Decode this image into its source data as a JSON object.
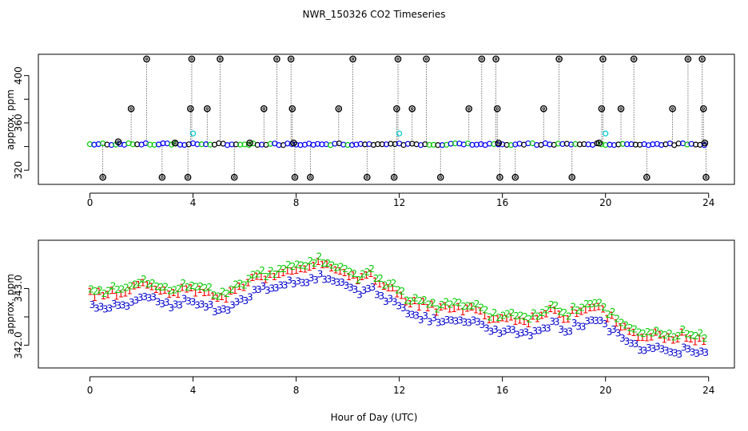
{
  "title": "NWR_150326  CO2 Timeseries",
  "xlabel": "Hour of Day (UTC)",
  "colors": {
    "flask_ring": "#000000",
    "series1": "#ff0000",
    "series2": "#00cc00",
    "series3": "#0000cc",
    "highlight": "#00cccc",
    "insitu": "#0000ff"
  },
  "chart_data": [
    {
      "type": "scatter",
      "name": "top-panel",
      "ylabel": "approx. ppm",
      "xlim": [
        -2,
        25
      ],
      "ylim": [
        308,
        418
      ],
      "xticks": [
        0,
        4,
        8,
        12,
        16,
        20,
        24
      ],
      "yticks": [
        320,
        340,
        360,
        380,
        400
      ],
      "ytick_labels": [
        "320",
        "",
        "360",
        "",
        "400"
      ],
      "baseline": 342,
      "insitu_minutes_step": 10,
      "outliers": [
        {
          "x": 0.5,
          "y": 314
        },
        {
          "x": 1.1,
          "y": 344
        },
        {
          "x": 1.6,
          "y": 372
        },
        {
          "x": 2.2,
          "y": 414
        },
        {
          "x": 2.8,
          "y": 314
        },
        {
          "x": 3.3,
          "y": 343
        },
        {
          "x": 3.8,
          "y": 314
        },
        {
          "x": 3.9,
          "y": 372
        },
        {
          "x": 3.95,
          "y": 414
        },
        {
          "x": 4.55,
          "y": 372
        },
        {
          "x": 5.05,
          "y": 414
        },
        {
          "x": 5.6,
          "y": 314
        },
        {
          "x": 6.2,
          "y": 343
        },
        {
          "x": 6.75,
          "y": 372
        },
        {
          "x": 7.25,
          "y": 414
        },
        {
          "x": 7.8,
          "y": 414
        },
        {
          "x": 7.85,
          "y": 372
        },
        {
          "x": 7.9,
          "y": 343
        },
        {
          "x": 7.95,
          "y": 314
        },
        {
          "x": 8.55,
          "y": 314
        },
        {
          "x": 9.65,
          "y": 372
        },
        {
          "x": 10.2,
          "y": 414
        },
        {
          "x": 10.75,
          "y": 314
        },
        {
          "x": 11.8,
          "y": 314
        },
        {
          "x": 11.9,
          "y": 372
        },
        {
          "x": 11.95,
          "y": 414
        },
        {
          "x": 12.5,
          "y": 372
        },
        {
          "x": 13.05,
          "y": 414
        },
        {
          "x": 13.6,
          "y": 314
        },
        {
          "x": 14.7,
          "y": 372
        },
        {
          "x": 15.2,
          "y": 414
        },
        {
          "x": 15.75,
          "y": 414
        },
        {
          "x": 15.8,
          "y": 372
        },
        {
          "x": 15.85,
          "y": 343
        },
        {
          "x": 15.9,
          "y": 314
        },
        {
          "x": 16.5,
          "y": 314
        },
        {
          "x": 17.6,
          "y": 372
        },
        {
          "x": 18.2,
          "y": 414
        },
        {
          "x": 18.7,
          "y": 314
        },
        {
          "x": 19.75,
          "y": 343
        },
        {
          "x": 19.85,
          "y": 372
        },
        {
          "x": 19.9,
          "y": 414
        },
        {
          "x": 20.6,
          "y": 372
        },
        {
          "x": 21.1,
          "y": 414
        },
        {
          "x": 21.6,
          "y": 314
        },
        {
          "x": 22.6,
          "y": 372
        },
        {
          "x": 23.2,
          "y": 414
        },
        {
          "x": 23.75,
          "y": 414
        },
        {
          "x": 23.8,
          "y": 372
        },
        {
          "x": 23.85,
          "y": 343
        },
        {
          "x": 23.9,
          "y": 314
        }
      ],
      "highlights": [
        {
          "x": 4.0,
          "y": 351
        },
        {
          "x": 12.0,
          "y": 351
        },
        {
          "x": 20.0,
          "y": 351
        }
      ]
    },
    {
      "type": "scatter",
      "name": "bottom-panel",
      "ylabel": "approx. ppm",
      "xlim": [
        -2,
        25
      ],
      "ylim": [
        341.6,
        343.85
      ],
      "xticks": [
        0,
        4,
        8,
        12,
        16,
        20,
        24
      ],
      "yticks": [
        342.0,
        342.5,
        343.0
      ],
      "ytick_labels": [
        "342.0",
        "",
        "343.0"
      ],
      "series": [
        {
          "name": "1",
          "label": "1",
          "offset": 0.0
        },
        {
          "name": "2",
          "label": "2",
          "offset": 0.07
        },
        {
          "name": "3",
          "label": "3",
          "offset": -0.22
        }
      ],
      "base_curve": {
        "x": [
          0,
          0.5,
          1,
          1.5,
          2,
          2.5,
          3,
          3.5,
          4,
          4.5,
          5,
          5.5,
          6,
          6.5,
          7,
          7.5,
          8,
          8.5,
          9,
          9.5,
          10,
          10.5,
          11,
          11.5,
          12,
          12.5,
          13,
          13.5,
          14,
          14.5,
          15,
          15.5,
          16,
          16.5,
          17,
          17.5,
          18,
          18.5,
          19,
          19.5,
          20,
          20.5,
          21,
          21.5,
          22,
          22.5,
          23,
          23.5,
          23.9
        ],
        "y": [
          342.95,
          342.85,
          342.95,
          342.9,
          343.05,
          343.0,
          342.95,
          342.95,
          343.0,
          342.9,
          342.85,
          342.9,
          343.05,
          343.15,
          343.2,
          343.3,
          343.35,
          343.4,
          343.45,
          343.35,
          343.2,
          343.15,
          343.2,
          343.05,
          342.85,
          342.75,
          342.7,
          342.6,
          342.65,
          342.6,
          342.65,
          342.5,
          342.45,
          342.45,
          342.4,
          342.5,
          342.6,
          342.45,
          342.6,
          342.65,
          342.55,
          342.4,
          342.2,
          342.15,
          342.2,
          342.1,
          342.15,
          342.1,
          342.05
        ]
      }
    }
  ]
}
